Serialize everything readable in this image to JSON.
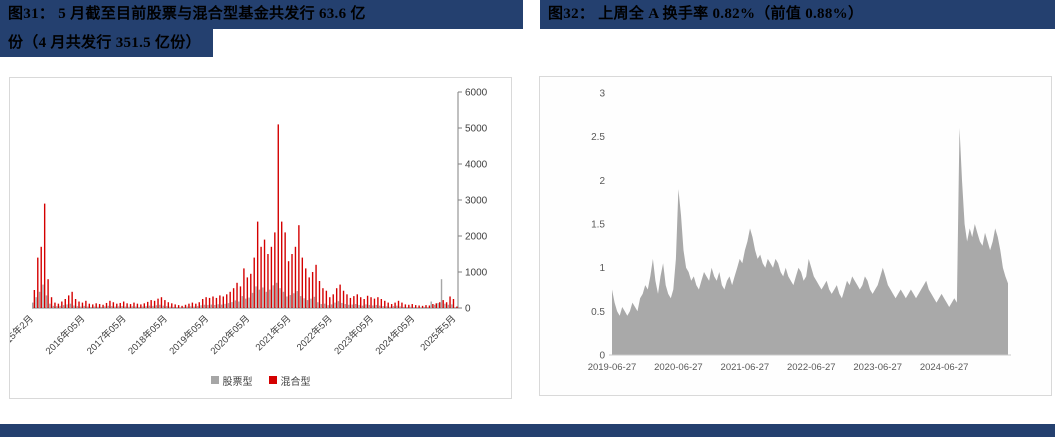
{
  "colors": {
    "navy": "#24406F",
    "stock_gray": "#A6A6A6",
    "hybrid_red": "#D40000",
    "area_gray": "#A9A9A9"
  },
  "fig31": {
    "title_line1": "图31：  5 月截至目前股票与混合型基金共发行 63.6 亿",
    "title_line2": "份（4 月共发行 351.5 亿份）"
  },
  "fig32": {
    "title": "图32：  上周全 A 换手率 0.82%（前值 0.88%）"
  },
  "chart_data": [
    {
      "type": "bar",
      "title": "",
      "x_start": "2015-02",
      "x_end": "2025-05",
      "x_freq": "monthly",
      "ylim": [
        0,
        6000
      ],
      "y_ticks": [
        0,
        1000,
        2000,
        3000,
        4000,
        5000,
        6000
      ],
      "y_axis_side": "right",
      "grid": false,
      "legend_position": "bottom",
      "x_ticks": [
        {
          "i": 0,
          "label": "2015年2月"
        },
        {
          "i": 15,
          "label": "2016年05月"
        },
        {
          "i": 27,
          "label": "2017年05月"
        },
        {
          "i": 39,
          "label": "2018年05月"
        },
        {
          "i": 51,
          "label": "2019年05月"
        },
        {
          "i": 63,
          "label": "2020年05月"
        },
        {
          "i": 75,
          "label": "2021年5月"
        },
        {
          "i": 87,
          "label": "2022年5月"
        },
        {
          "i": 99,
          "label": "2023年05月"
        },
        {
          "i": 111,
          "label": "2024年05月"
        },
        {
          "i": 123,
          "label": "2025年5月"
        }
      ],
      "series": [
        {
          "name": "股票型",
          "color": "#A6A6A6",
          "values": [
            150,
            300,
            450,
            650,
            350,
            120,
            60,
            50,
            60,
            80,
            100,
            120,
            70,
            50,
            40,
            60,
            40,
            30,
            40,
            35,
            30,
            45,
            60,
            50,
            40,
            45,
            55,
            40,
            35,
            45,
            40,
            30,
            40,
            50,
            65,
            60,
            75,
            90,
            65,
            50,
            40,
            30,
            25,
            20,
            30,
            40,
            45,
            40,
            50,
            75,
            90,
            85,
            95,
            85,
            105,
            95,
            115,
            135,
            165,
            210,
            180,
            330,
            260,
            290,
            420,
            600,
            510,
            570,
            450,
            510,
            630,
            700,
            550,
            450,
            320,
            360,
            410,
            470,
            330,
            270,
            220,
            260,
            310,
            160,
            110,
            120,
            80,
            100,
            150,
            190,
            140,
            110,
            90,
            95,
            110,
            85,
            65,
            100,
            85,
            70,
            85,
            65,
            55,
            45,
            35,
            50,
            65,
            45,
            30,
            25,
            35,
            25,
            20,
            20,
            30,
            25,
            180,
            90,
            140,
            800,
            120,
            90,
            100,
            24
          ]
        },
        {
          "name": "混合型",
          "color": "#D40000",
          "values": [
            500,
            1400,
            1700,
            2900,
            800,
            300,
            150,
            120,
            180,
            250,
            350,
            450,
            250,
            180,
            150,
            200,
            120,
            100,
            130,
            110,
            90,
            140,
            200,
            160,
            120,
            140,
            180,
            130,
            110,
            150,
            120,
            100,
            130,
            170,
            220,
            200,
            260,
            300,
            220,
            160,
            130,
            100,
            80,
            60,
            90,
            120,
            150,
            120,
            160,
            250,
            300,
            280,
            320,
            280,
            350,
            320,
            380,
            450,
            550,
            700,
            600,
            1100,
            850,
            950,
            1400,
            2400,
            1700,
            1900,
            1500,
            1700,
            2100,
            5100,
            2400,
            2100,
            1300,
            1500,
            1700,
            2300,
            1400,
            1100,
            850,
            1000,
            1200,
            750,
            550,
            480,
            300,
            380,
            550,
            650,
            480,
            380,
            280,
            330,
            380,
            300,
            250,
            340,
            300,
            260,
            300,
            250,
            200,
            150,
            110,
            150,
            200,
            150,
            100,
            90,
            110,
            80,
            70,
            60,
            80,
            70,
            110,
            130,
            160,
            220,
            160,
            320,
            250,
            40
          ]
        }
      ]
    },
    {
      "type": "area",
      "title": "",
      "x_start": "2019-06-27",
      "x_end": "2025-06",
      "ylim": [
        0,
        3
      ],
      "y_ticks": [
        "0",
        "0.5",
        "1",
        "1.5",
        "2",
        "2.5",
        "3"
      ],
      "y_axis_side": "left",
      "grid": false,
      "x_ticks": [
        {
          "i": 0,
          "label": "2019-06-27"
        },
        {
          "i": 26,
          "label": "2020-06-27"
        },
        {
          "i": 52,
          "label": "2021-06-27"
        },
        {
          "i": 78,
          "label": "2022-06-27"
        },
        {
          "i": 104,
          "label": "2023-06-27"
        },
        {
          "i": 130,
          "label": "2024-06-27"
        }
      ],
      "series": [
        {
          "name": "全A换手率(%)",
          "color": "#A9A9A9",
          "values": [
            0.75,
            0.6,
            0.5,
            0.45,
            0.55,
            0.5,
            0.45,
            0.5,
            0.6,
            0.55,
            0.5,
            0.65,
            0.7,
            0.8,
            0.75,
            0.9,
            1.1,
            0.85,
            0.7,
            0.9,
            1.05,
            0.8,
            0.7,
            0.65,
            0.75,
            1.1,
            1.9,
            1.6,
            1.2,
            1.0,
            0.95,
            0.85,
            0.9,
            0.8,
            0.75,
            0.85,
            0.95,
            0.9,
            0.85,
            1.0,
            0.9,
            0.85,
            0.95,
            0.8,
            0.75,
            0.85,
            0.9,
            0.8,
            0.9,
            1.0,
            1.1,
            1.05,
            1.2,
            1.3,
            1.45,
            1.35,
            1.2,
            1.1,
            1.15,
            1.05,
            1.0,
            1.1,
            1.05,
            1.0,
            1.1,
            1.05,
            0.95,
            0.9,
            1.0,
            0.9,
            0.85,
            0.8,
            0.9,
            1.0,
            0.95,
            0.85,
            0.9,
            1.1,
            1.0,
            0.9,
            0.85,
            0.8,
            0.75,
            0.8,
            0.85,
            0.75,
            0.7,
            0.75,
            0.8,
            0.7,
            0.65,
            0.75,
            0.85,
            0.8,
            0.9,
            0.85,
            0.8,
            0.75,
            0.8,
            0.9,
            0.85,
            0.75,
            0.7,
            0.75,
            0.8,
            0.9,
            1.0,
            0.9,
            0.8,
            0.75,
            0.7,
            0.65,
            0.7,
            0.75,
            0.7,
            0.65,
            0.7,
            0.75,
            0.7,
            0.65,
            0.7,
            0.75,
            0.8,
            0.85,
            0.75,
            0.7,
            0.65,
            0.6,
            0.65,
            0.7,
            0.65,
            0.6,
            0.55,
            0.6,
            0.65,
            0.6,
            2.6,
            2.0,
            1.5,
            1.3,
            1.45,
            1.35,
            1.5,
            1.4,
            1.3,
            1.25,
            1.4,
            1.3,
            1.2,
            1.3,
            1.45,
            1.35,
            1.2,
            1.0,
            0.9,
            0.82
          ]
        }
      ]
    }
  ]
}
